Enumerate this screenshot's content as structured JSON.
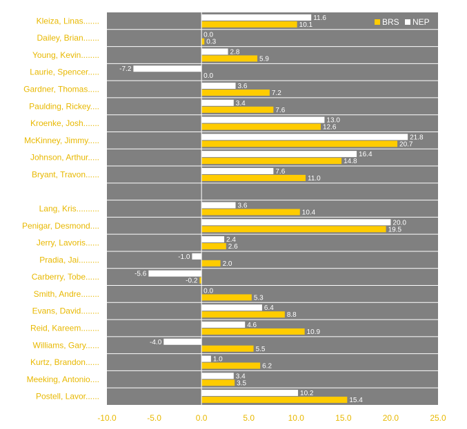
{
  "chart_data": {
    "type": "bar",
    "orientation": "horizontal",
    "categories": [
      "Kleiza, Linas.......",
      "Dailey, Brian.......",
      "Young, Kevin........",
      "Laurie, Spencer.....",
      "Gardner, Thomas.....",
      "Paulding, Rickey....",
      "Kroenke, Josh.......",
      "McKinney, Jimmy.....",
      "Johnson, Arthur.....",
      "Bryant, Travon......",
      "",
      "Lang, Kris..........",
      "Penigar, Desmond....",
      "Jerry, Lavoris......",
      "Pradia, Jai.........",
      "Carberry, Tobe......",
      "Smith, Andre........",
      "Evans, David........",
      "Reid, Kareem........",
      "Williams, Gary......",
      "Kurtz, Brandon......",
      "Meeking, Antonio....",
      "Postell, Lavor......"
    ],
    "series": [
      {
        "name": "BRS",
        "color": "#ffcc00",
        "values": [
          10.1,
          0.3,
          5.9,
          0.0,
          7.2,
          7.6,
          12.6,
          20.7,
          14.8,
          11.0,
          null,
          10.4,
          19.5,
          2.6,
          2.0,
          -0.2,
          5.3,
          8.8,
          10.9,
          5.5,
          6.2,
          3.5,
          15.4
        ],
        "labels": [
          "10.1",
          "0.3",
          "5.9",
          "0.0",
          "7.2",
          "7.6",
          "12.6",
          "20.7",
          "14.8",
          "11.0",
          "",
          "10.4",
          "19.5",
          "2.6",
          "2.0",
          "-0.2",
          "5.3",
          "8.8",
          "10.9",
          "5.5",
          "6.2",
          "3.5",
          "15.4"
        ]
      },
      {
        "name": "NEP",
        "color": "#ffffff",
        "values": [
          11.6,
          0.0,
          2.8,
          -7.2,
          3.6,
          3.4,
          13.0,
          21.8,
          16.4,
          7.6,
          null,
          3.6,
          20.0,
          2.4,
          -1.0,
          -5.6,
          0.0,
          6.4,
          4.6,
          -4.0,
          1.0,
          3.4,
          10.2
        ],
        "labels": [
          "11.6",
          "0.0",
          "2.8",
          "-7.2",
          "3.6",
          "3.4",
          "13.0",
          "21.8",
          "16.4",
          "7.6",
          "",
          "3.6",
          "20.0",
          "2.4",
          "-1.0",
          "-5.6",
          "0.0",
          "6.4",
          "4.6",
          "-4.0",
          "1.0",
          "3.4",
          "10.2"
        ]
      }
    ],
    "xlim": [
      -10,
      25
    ],
    "xticks": [
      "-10.0",
      "-5.0",
      "0.0",
      "5.0",
      "10.0",
      "15.0",
      "20.0",
      "25.0"
    ],
    "xtick_values": [
      -10,
      -5,
      0,
      5,
      10,
      15,
      20,
      25
    ],
    "legend": {
      "position": "top-right",
      "items": [
        "BRS",
        "NEP"
      ]
    },
    "plot_background": "#808080",
    "label_color": "#e8b800",
    "grid": "horizontal row separators"
  }
}
